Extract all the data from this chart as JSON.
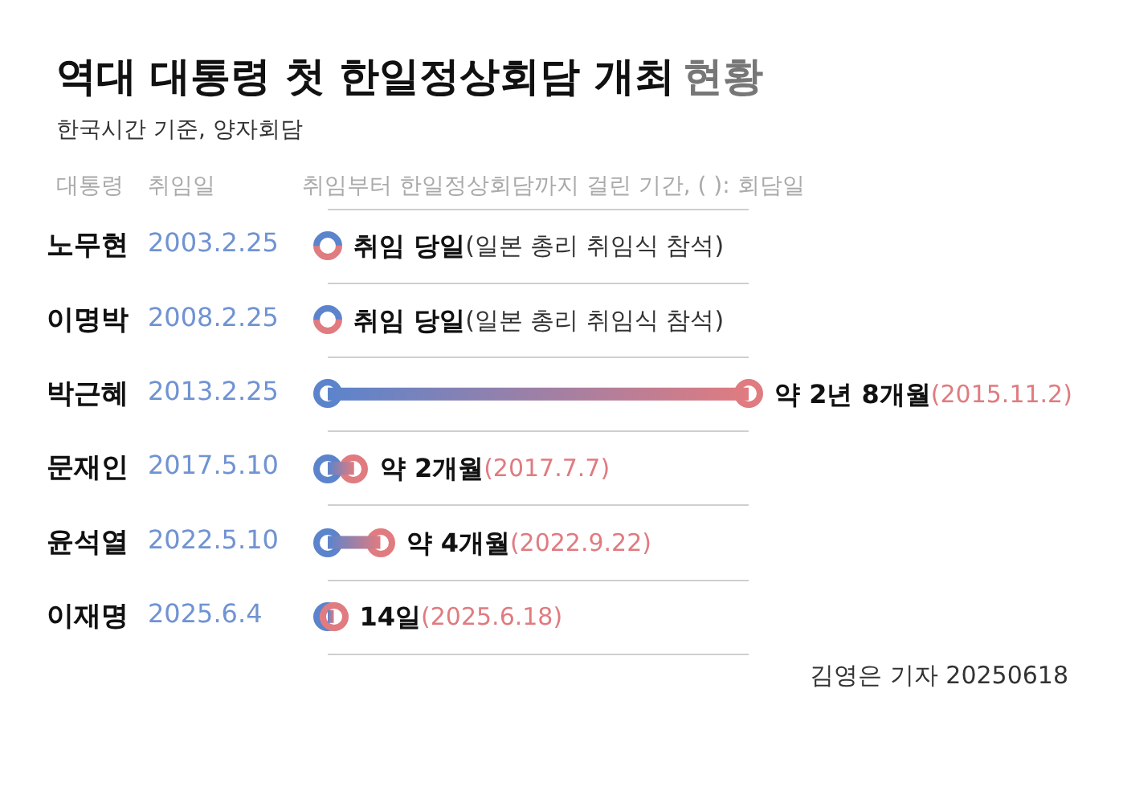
{
  "chart_data": {
    "type": "bar",
    "orientation": "horizontal",
    "tick_labels": "y",
    "title": "역대 대통령 첫 한일정상회담 개최 현황",
    "subtitle": "한국시간 기준, 양자회담",
    "categories": [
      "노무현",
      "이명박",
      "박근혜",
      "문재인",
      "윤석열",
      "이재명"
    ],
    "series": [
      {
        "color": "#e07b80",
        "values": [
          0,
          0,
          32,
          2,
          4,
          0.46
        ],
        "value_labels": [
          "취임 당일(일본 총리 취임식 참석)",
          "취임 당일(일본 총리 취임식 참석)",
          "약 2년 8개월(2015.11.2)",
          "약 2개월(2017.7.7)",
          "약 4개월(2022.9.22)",
          "14일(2025.6.18)"
        ]
      }
    ],
    "annotations": [
      "대통령",
      "취임일",
      "취임부터 한일정상회담까지 걸린 기간, ( ): 회담일",
      "2003.2.25",
      "2008.2.25",
      "2013.2.25",
      "2017.5.10",
      "2022.5.10",
      "2025.6.4",
      "김영은 기자 20250618"
    ],
    "grid": "y"
  }
}
